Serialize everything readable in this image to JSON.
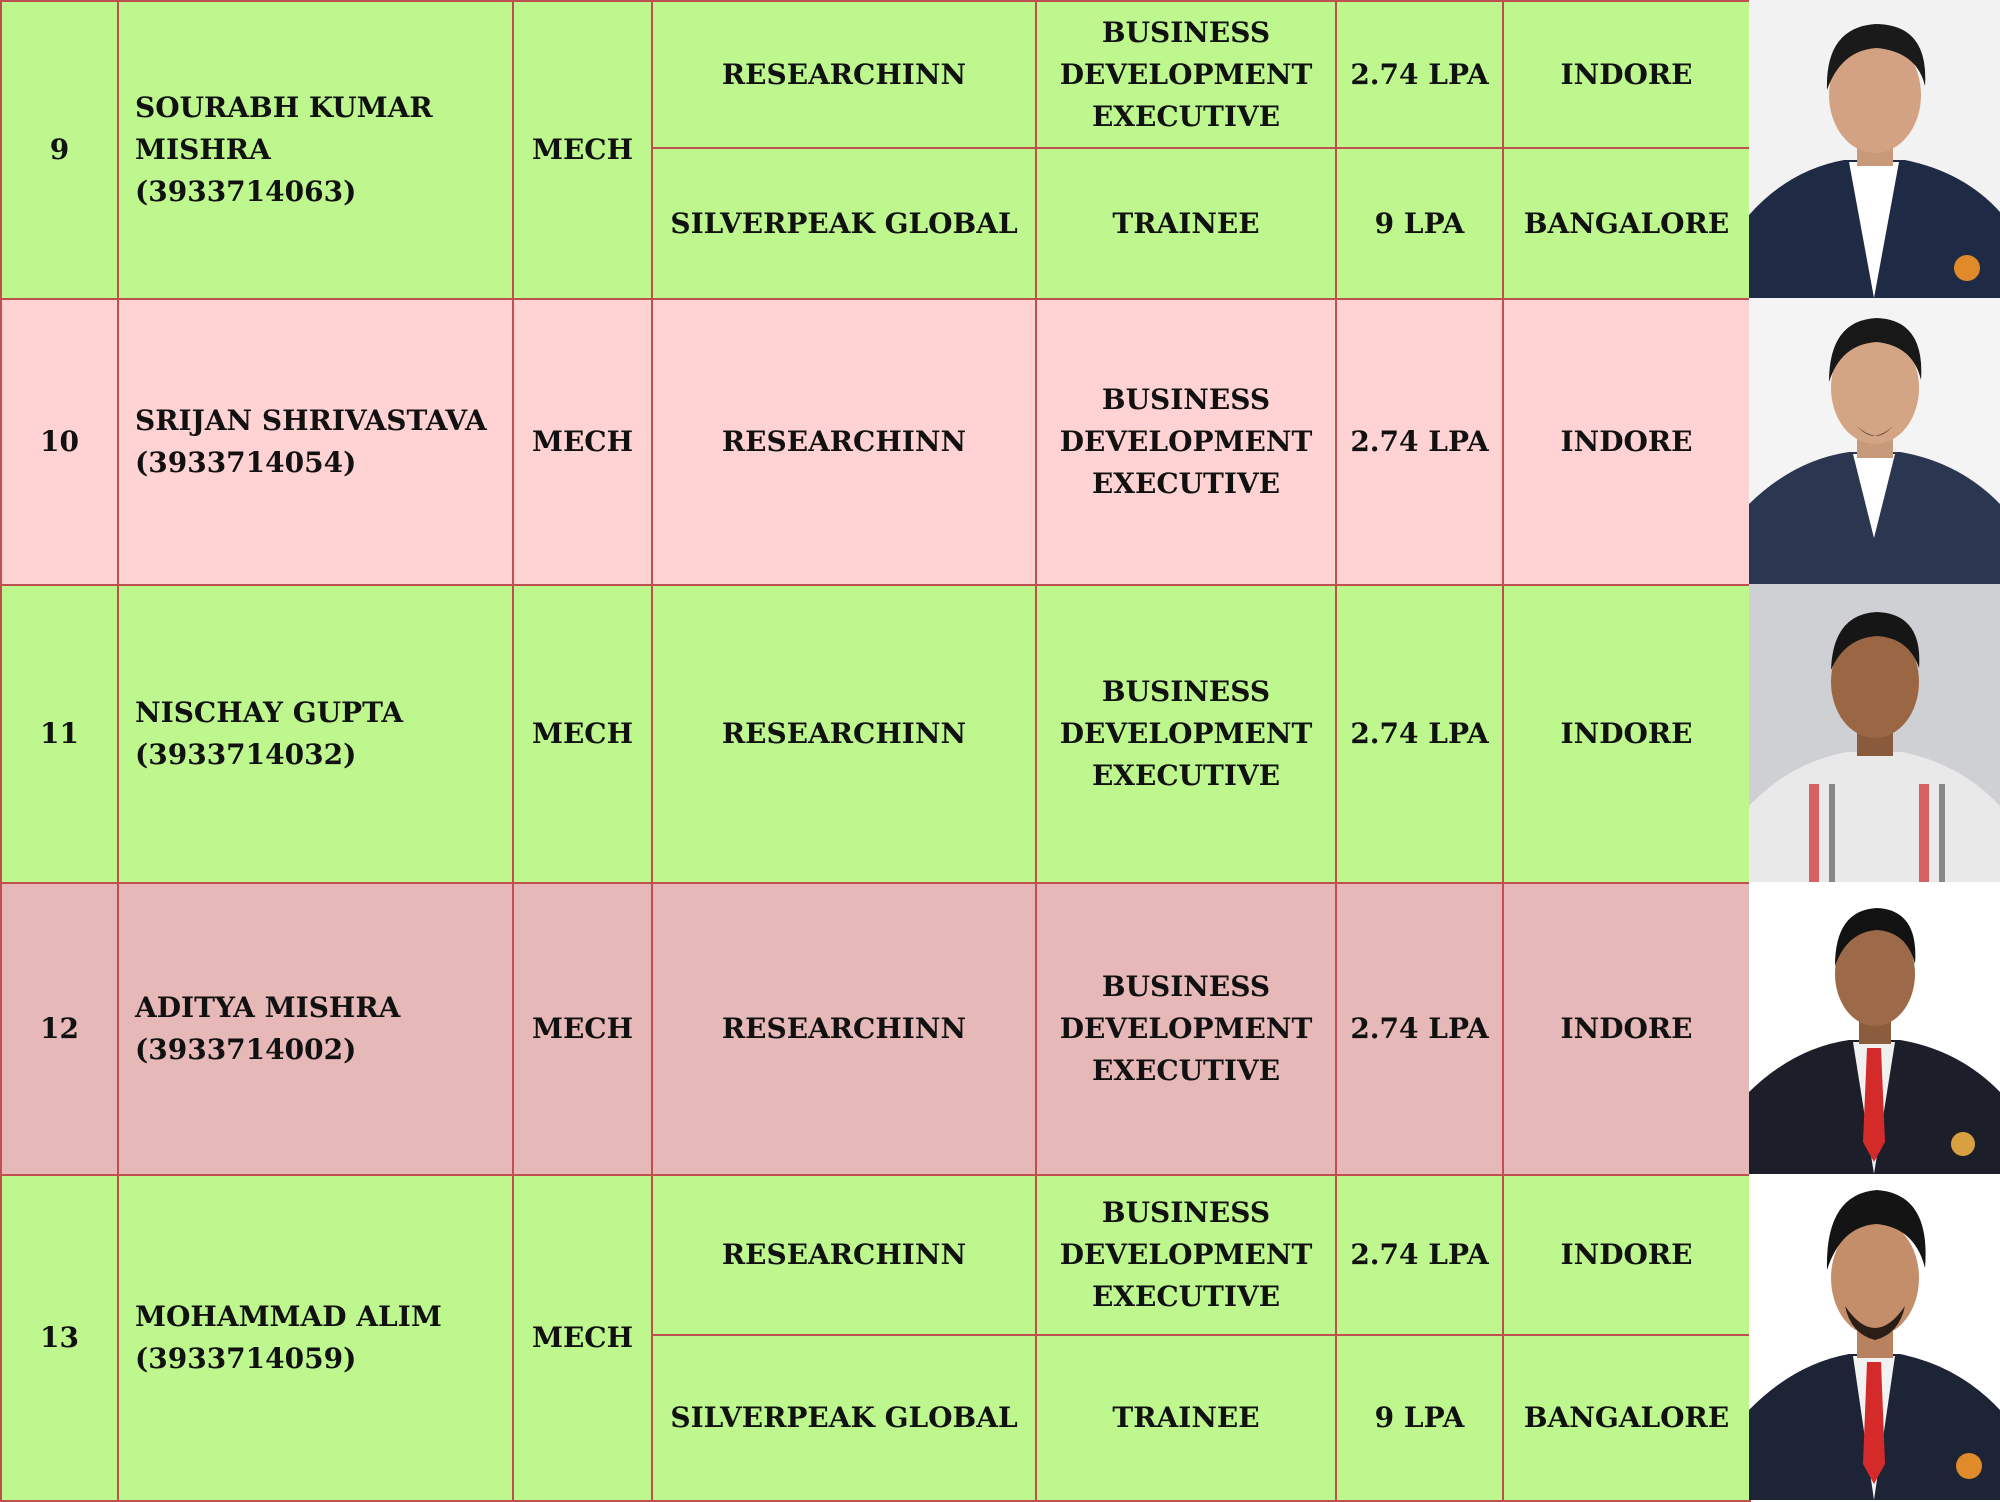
{
  "rows": [
    {
      "sno": "9",
      "name": "SOURABH KUMAR MISHRA",
      "roll": "(3933714063)",
      "branch": "MECH",
      "offers": [
        {
          "company": "RESEARCHINN",
          "designation": "BUSINESS DEVELOPMENT EXECUTIVE",
          "package": "2.74 LPA",
          "location": "INDORE"
        },
        {
          "company": "SILVERPEAK GLOBAL",
          "designation": "TRAINEE",
          "package": "9 LPA",
          "location": "BANGALORE"
        }
      ]
    },
    {
      "sno": "10",
      "name": "SRIJAN SHRIVASTAVA",
      "roll": "(3933714054)",
      "branch": "MECH",
      "offers": [
        {
          "company": "RESEARCHINN",
          "designation": "BUSINESS DEVELOPMENT EXECUTIVE",
          "package": "2.74 LPA",
          "location": "INDORE"
        }
      ]
    },
    {
      "sno": "11",
      "name": "NISCHAY GUPTA",
      "roll": "(3933714032)",
      "branch": "MECH",
      "offers": [
        {
          "company": "RESEARCHINN",
          "designation": "BUSINESS DEVELOPMENT EXECUTIVE",
          "package": "2.74 LPA",
          "location": "INDORE"
        }
      ]
    },
    {
      "sno": "12",
      "name": "ADITYA MISHRA",
      "roll": "(3933714002)",
      "branch": "MECH",
      "offers": [
        {
          "company": "RESEARCHINN",
          "designation": "BUSINESS DEVELOPMENT EXECUTIVE",
          "package": "2.74 LPA",
          "location": "INDORE"
        }
      ]
    },
    {
      "sno": "13",
      "name": "MOHAMMAD ALIM",
      "roll": "(3933714059)",
      "branch": "MECH",
      "offers": [
        {
          "company": "RESEARCHINN",
          "designation": "BUSINESS DEVELOPMENT EXECUTIVE",
          "package": "2.74 LPA",
          "location": "INDORE"
        },
        {
          "company": "SILVERPEAK GLOBAL",
          "designation": "TRAINEE",
          "package": "9 LPA",
          "location": "BANGALORE"
        }
      ]
    }
  ],
  "colors": {
    "row_green": "#bdf78e",
    "row_pink": "#ffd3d3",
    "row_rose": "#e6b8b8",
    "border": "#c0504d"
  }
}
